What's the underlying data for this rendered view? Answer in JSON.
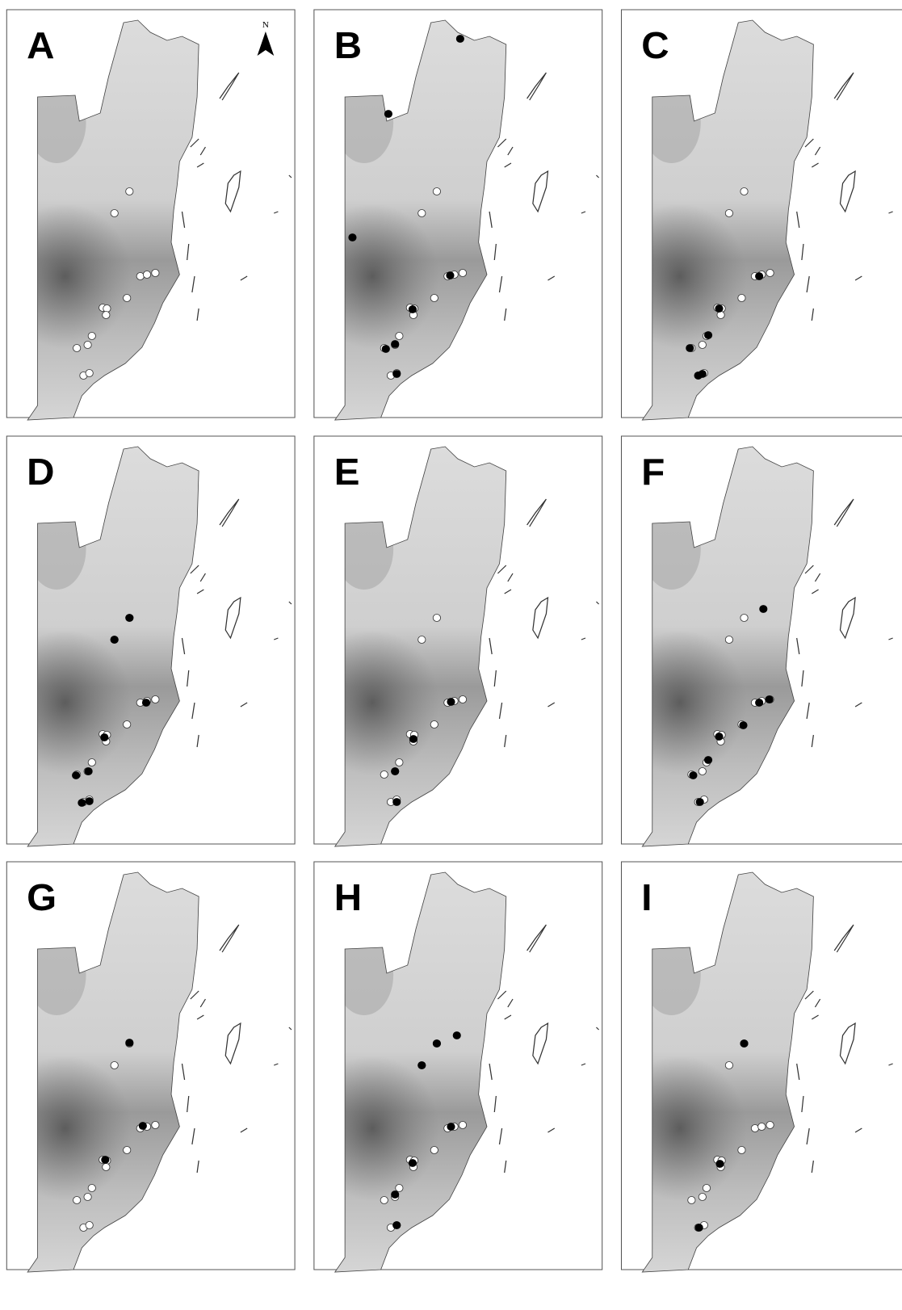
{
  "panels": [
    {
      "label": "A"
    },
    {
      "label": "B"
    },
    {
      "label": "C"
    },
    {
      "label": "D"
    },
    {
      "label": "E"
    },
    {
      "label": "F"
    },
    {
      "label": "G"
    },
    {
      "label": "H"
    },
    {
      "label": "I"
    }
  ],
  "north_arrow": {
    "label": "N"
  }
}
